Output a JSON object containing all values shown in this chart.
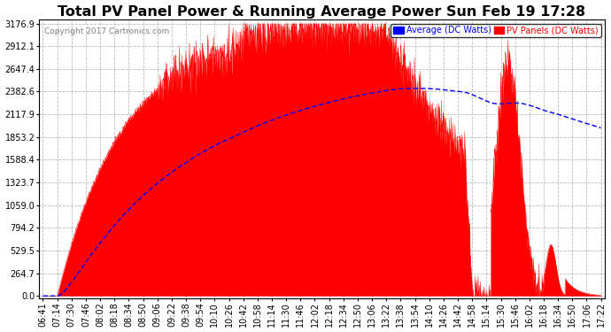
{
  "title": "Total PV Panel Power & Running Average Power Sun Feb 19 17:28",
  "copyright": "Copyright 2017 Cartronics.com",
  "legend_avg": "Average (DC Watts)",
  "legend_pv": "PV Panels (DC Watts)",
  "ymax": 3176.9,
  "yticks": [
    0.0,
    264.7,
    529.5,
    794.2,
    1059.0,
    1323.7,
    1588.4,
    1853.2,
    2117.9,
    2382.6,
    2647.4,
    2912.1,
    3176.9
  ],
  "bg_color": "#ffffff",
  "plot_bg_color": "#ffffff",
  "grid_color": "#aaaaaa",
  "pv_fill_color": "#ff0000",
  "avg_line_color": "#0000ff",
  "title_fontsize": 11.5,
  "tick_fontsize": 7.0,
  "xtick_labels": [
    "06:41",
    "07:14",
    "07:30",
    "07:46",
    "08:02",
    "08:18",
    "08:34",
    "08:50",
    "09:06",
    "09:22",
    "09:38",
    "09:54",
    "10:10",
    "10:26",
    "10:42",
    "10:58",
    "11:14",
    "11:30",
    "11:46",
    "12:02",
    "12:18",
    "12:34",
    "12:50",
    "13:06",
    "13:22",
    "13:38",
    "13:54",
    "14:10",
    "14:26",
    "14:42",
    "14:58",
    "15:14",
    "15:30",
    "15:46",
    "16:02",
    "16:18",
    "16:34",
    "16:50",
    "17:06",
    "17:22"
  ],
  "n_xticks": 40
}
